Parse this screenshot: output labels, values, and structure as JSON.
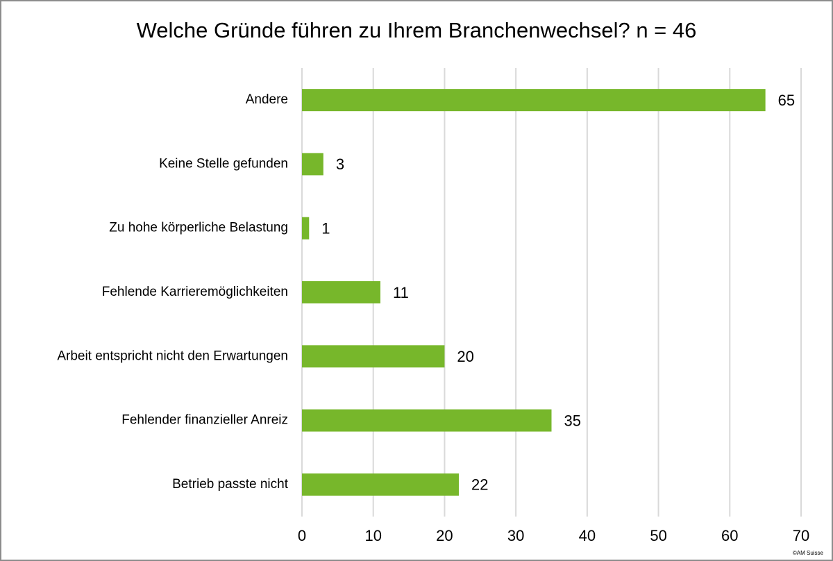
{
  "chart_data": {
    "type": "barh",
    "title": "Welche Gründe führen zu Ihrem Branchenwechsel? n = 46",
    "categories": [
      "Andere",
      "Keine Stelle gefunden",
      "Zu hohe körperliche Belastung",
      "Fehlende Karrieremöglichkeiten",
      "Arbeit entspricht nicht den Erwartungen",
      "Fehlender finanzieller Anreiz",
      "Betrieb passte nicht"
    ],
    "values": [
      65,
      3,
      1,
      11,
      20,
      35,
      22
    ],
    "color": "#77b72b",
    "xlim": [
      0,
      70
    ],
    "xticks": [
      0,
      10,
      20,
      30,
      40,
      50,
      60,
      70
    ],
    "grid": true,
    "credit": "©AM Suisse"
  }
}
